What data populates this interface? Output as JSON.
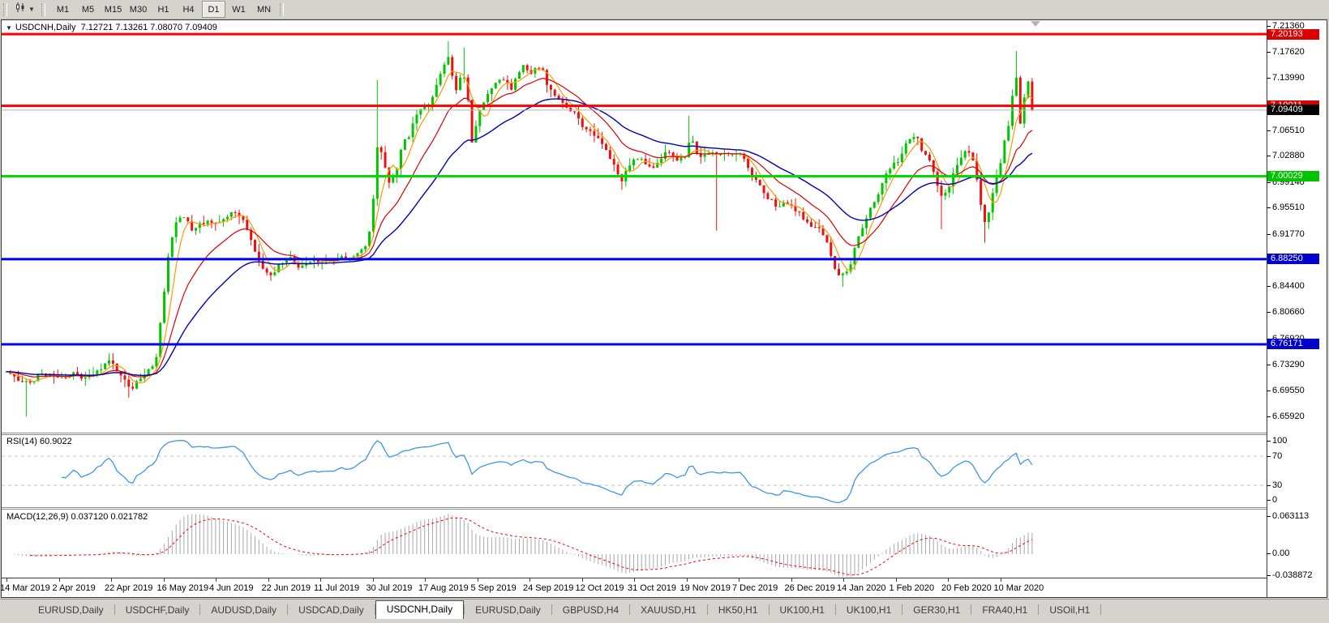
{
  "toolbar": {
    "timeframes": [
      "M1",
      "M5",
      "M15",
      "M30",
      "H1",
      "H4",
      "D1",
      "W1",
      "MN"
    ],
    "active_timeframe": "D1"
  },
  "chart": {
    "title_symbol": "USDCNH,Daily",
    "ohlc_text": "7.12721 7.13261 7.08070 7.09409",
    "ohlc": {
      "open": "7.12721",
      "high": "7.13261",
      "low": "7.08070",
      "close": "7.09409"
    },
    "price_axis": {
      "ticks": [
        "7.21360",
        "7.17620",
        "7.13990",
        "7.06510",
        "7.02880",
        "6.99140",
        "6.95510",
        "6.91770",
        "6.84400",
        "6.80660",
        "6.76920",
        "6.73290",
        "6.69550",
        "6.65920"
      ]
    },
    "hlines": [
      {
        "price": "7.20193",
        "color": "#ff0000",
        "label_bg": "#dd0000"
      },
      {
        "price": "7.10011",
        "color": "#ff0000",
        "label_bg": "#dd0000"
      },
      {
        "price": "7.00029",
        "color": "#00dd00",
        "label_bg": "#00c400"
      },
      {
        "price": "6.88250",
        "color": "#0000ee",
        "label_bg": "#0000cc"
      },
      {
        "price": "6.76171",
        "color": "#0000ee",
        "label_bg": "#0000cc"
      }
    ],
    "current": {
      "price": "7.09409",
      "line_color": "#b4b4b4",
      "label_bg": "#000000"
    },
    "colors": {
      "bull": "#00c600",
      "bear": "#ee1010",
      "ma_fast": "#ff9900",
      "ma_mid": "#dd0000",
      "ma_slow": "#0000bb"
    }
  },
  "rsi": {
    "label": "RSI(14) 60.9022",
    "levels": [
      "100",
      "70",
      "30",
      "0"
    ],
    "line_color": "#3d96e8",
    "value": 60.9022
  },
  "macd": {
    "label": "MACD(12,26,9) 0.037120 0.021782",
    "axis_labels": [
      "0.063113",
      "0.00",
      "-0.038872"
    ],
    "histogram_color": "#a8a8a8",
    "signal_color": "#ff0000",
    "macd_value": 0.03712,
    "signal_value": 0.021782
  },
  "date_axis": {
    "labels": [
      "14 Mar 2019",
      "2 Apr 2019",
      "22 Apr 2019",
      "16 May 2019",
      "4 Jun 2019",
      "22 Jun 2019",
      "11 Jul 2019",
      "30 Jul 2019",
      "17 Aug 2019",
      "5 Sep 2019",
      "24 Sep 2019",
      "12 Oct 2019",
      "31 Oct 2019",
      "19 Nov 2019",
      "7 Dec 2019",
      "26 Dec 2019",
      "14 Jan 2020",
      "1 Feb 2020",
      "20 Feb 2020",
      "10 Mar 2020"
    ]
  },
  "tabs": {
    "items": [
      "EURUSD,Daily",
      "USDCHF,Daily",
      "AUDUSD,Daily",
      "USDCAD,Daily",
      "USDCNH,Daily",
      "EURUSD,Daily",
      "GBPUSD,H4",
      "XAUUSD,H1",
      "HK50,H1",
      "UK100,H1",
      "UK100,H1",
      "GER30,H1",
      "FRA40,H1",
      "USOil,H1"
    ],
    "active_index": 4
  },
  "chart_data": {
    "type": "candlestick",
    "symbol": "USDCNH",
    "timeframe": "Daily",
    "visible_price_range": [
      6.6592,
      7.2136
    ],
    "indicators": [
      {
        "name": "RSI",
        "period": 14,
        "value": 60.9022,
        "levels": [
          30,
          70
        ]
      },
      {
        "name": "MACD",
        "params": [
          12,
          26,
          9
        ],
        "macd": 0.03712,
        "signal": 0.021782,
        "axis_max": 0.063113,
        "axis_min": -0.038872
      }
    ],
    "horizontal_levels": [
      7.20193,
      7.10011,
      7.00029,
      6.8825,
      6.76171
    ],
    "last_price": 7.09409,
    "close_anchors": [
      [
        6,
        6.722
      ],
      [
        20,
        6.712
      ],
      [
        34,
        6.706
      ],
      [
        48,
        6.72
      ],
      [
        62,
        6.716
      ],
      [
        76,
        6.714
      ],
      [
        90,
        6.72
      ],
      [
        104,
        6.713
      ],
      [
        118,
        6.722
      ],
      [
        134,
        6.741
      ],
      [
        148,
        6.716
      ],
      [
        158,
        6.697
      ],
      [
        168,
        6.71
      ],
      [
        180,
        6.722
      ],
      [
        190,
        6.735
      ],
      [
        198,
        6.81
      ],
      [
        206,
        6.89
      ],
      [
        214,
        6.932
      ],
      [
        224,
        6.946
      ],
      [
        234,
        6.925
      ],
      [
        244,
        6.932
      ],
      [
        256,
        6.94
      ],
      [
        266,
        6.931
      ],
      [
        276,
        6.94
      ],
      [
        286,
        6.953
      ],
      [
        296,
        6.94
      ],
      [
        304,
        6.924
      ],
      [
        314,
        6.888
      ],
      [
        324,
        6.867
      ],
      [
        334,
        6.858
      ],
      [
        344,
        6.877
      ],
      [
        354,
        6.886
      ],
      [
        364,
        6.871
      ],
      [
        376,
        6.874
      ],
      [
        388,
        6.879
      ],
      [
        400,
        6.878
      ],
      [
        412,
        6.882
      ],
      [
        424,
        6.884
      ],
      [
        436,
        6.887
      ],
      [
        448,
        6.897
      ],
      [
        456,
        6.93
      ],
      [
        464,
        7.048
      ],
      [
        470,
        7.028
      ],
      [
        478,
        6.99
      ],
      [
        486,
        7.005
      ],
      [
        494,
        7.045
      ],
      [
        502,
        7.058
      ],
      [
        510,
        7.08
      ],
      [
        518,
        7.097
      ],
      [
        526,
        7.102
      ],
      [
        534,
        7.12
      ],
      [
        542,
        7.15
      ],
      [
        550,
        7.172
      ],
      [
        556,
        7.142
      ],
      [
        562,
        7.118
      ],
      [
        568,
        7.155
      ],
      [
        574,
        7.12
      ],
      [
        580,
        7.05
      ],
      [
        588,
        7.09
      ],
      [
        596,
        7.11
      ],
      [
        604,
        7.122
      ],
      [
        612,
        7.138
      ],
      [
        620,
        7.134
      ],
      [
        628,
        7.124
      ],
      [
        636,
        7.142
      ],
      [
        644,
        7.158
      ],
      [
        652,
        7.14
      ],
      [
        660,
        7.158
      ],
      [
        668,
        7.148
      ],
      [
        676,
        7.122
      ],
      [
        684,
        7.114
      ],
      [
        692,
        7.102
      ],
      [
        700,
        7.096
      ],
      [
        708,
        7.088
      ],
      [
        716,
        7.072
      ],
      [
        724,
        7.066
      ],
      [
        732,
        7.058
      ],
      [
        740,
        7.048
      ],
      [
        748,
        7.028
      ],
      [
        756,
        7.012
      ],
      [
        764,
        6.992
      ],
      [
        772,
        7.012
      ],
      [
        780,
        7.028
      ],
      [
        788,
        7.026
      ],
      [
        796,
        7.016
      ],
      [
        804,
        7.01
      ],
      [
        812,
        7.024
      ],
      [
        820,
        7.034
      ],
      [
        828,
        7.026
      ],
      [
        836,
        7.022
      ],
      [
        844,
        7.03
      ],
      [
        850,
        7.054
      ],
      [
        856,
        7.036
      ],
      [
        864,
        7.028
      ],
      [
        872,
        7.03
      ],
      [
        880,
        7.034
      ],
      [
        888,
        7.028
      ],
      [
        896,
        7.034
      ],
      [
        904,
        7.03
      ],
      [
        912,
        7.034
      ],
      [
        920,
        7.012
      ],
      [
        928,
        6.996
      ],
      [
        936,
        6.986
      ],
      [
        944,
        6.972
      ],
      [
        952,
        6.962
      ],
      [
        960,
        6.957
      ],
      [
        968,
        6.962
      ],
      [
        976,
        6.957
      ],
      [
        984,
        6.946
      ],
      [
        992,
        6.936
      ],
      [
        1000,
        6.93
      ],
      [
        1008,
        6.926
      ],
      [
        1016,
        6.912
      ],
      [
        1024,
        6.882
      ],
      [
        1032,
        6.856
      ],
      [
        1040,
        6.86
      ],
      [
        1048,
        6.878
      ],
      [
        1056,
        6.914
      ],
      [
        1064,
        6.934
      ],
      [
        1072,
        6.954
      ],
      [
        1080,
        6.97
      ],
      [
        1088,
        6.994
      ],
      [
        1096,
        7.014
      ],
      [
        1104,
        7.02
      ],
      [
        1112,
        7.038
      ],
      [
        1120,
        7.053
      ],
      [
        1128,
        7.058
      ],
      [
        1136,
        7.032
      ],
      [
        1144,
        7.026
      ],
      [
        1152,
        6.996
      ],
      [
        1160,
        6.97
      ],
      [
        1168,
        6.986
      ],
      [
        1176,
        7.01
      ],
      [
        1184,
        7.028
      ],
      [
        1192,
        7.038
      ],
      [
        1200,
        7.016
      ],
      [
        1208,
        6.958
      ],
      [
        1214,
        6.932
      ],
      [
        1220,
        6.962
      ],
      [
        1226,
        6.992
      ],
      [
        1232,
        7.022
      ],
      [
        1238,
        7.056
      ],
      [
        1244,
        7.082
      ],
      [
        1250,
        7.158
      ],
      [
        1256,
        7.072
      ],
      [
        1262,
        7.118
      ],
      [
        1268,
        7.138
      ],
      [
        1271,
        7.0941
      ]
    ],
    "wick_extremes": [
      [
        30,
        "low",
        6.659
      ],
      [
        158,
        "low",
        6.686
      ],
      [
        464,
        "high",
        7.137
      ],
      [
        550,
        "high",
        7.192
      ],
      [
        568,
        "high",
        7.183
      ],
      [
        766,
        "low",
        6.981
      ],
      [
        850,
        "high",
        7.086
      ],
      [
        884,
        "low",
        6.923
      ],
      [
        1036,
        "low",
        6.843
      ],
      [
        1160,
        "low",
        6.925
      ],
      [
        1212,
        "low",
        6.906
      ],
      [
        1250,
        "high",
        7.178
      ]
    ]
  }
}
